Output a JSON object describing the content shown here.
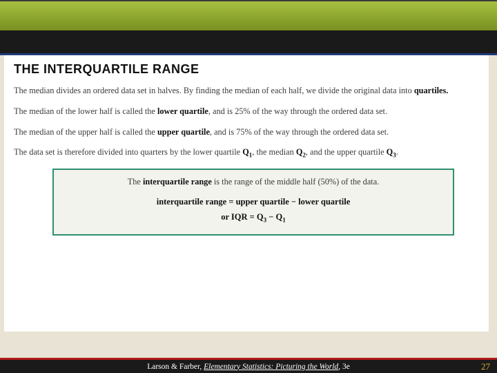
{
  "header": {
    "gradient_top": "#a8c040",
    "gradient_mid": "#8fa830",
    "gradient_bot": "#7a9020",
    "band_color": "#1a1a1a",
    "accent_line": "#1e3a7a"
  },
  "content": {
    "title": "THE INTERQUARTILE RANGE",
    "para1_a": "The median divides an ordered data set in halves. By finding the median of each half, we divide the original data into ",
    "para1_b": "quartiles.",
    "para2_a": "The median of the lower half is called the ",
    "para2_b": "lower quartile",
    "para2_c": ", and is 25% of the way through the ordered data set.",
    "para3_a": "The median of the upper half is called the ",
    "para3_b": "upper quartile",
    "para3_c": ", and is 75% of the way through the ordered data set.",
    "para4_a": "The data set is therefore divided into quarters by the lower quartile ",
    "para4_q1": "Q",
    "para4_s1": "1",
    "para4_b": ", the median ",
    "para4_q2": "Q",
    "para4_s2": "2",
    "para4_c": ", and the upper quartile ",
    "para4_q3": "Q",
    "para4_s3": "3",
    "para4_d": "."
  },
  "box": {
    "border_color": "#2e8f6f",
    "bg_color": "#f1f3ec",
    "line1_a": "The ",
    "line1_b": "interquartile range",
    "line1_c": " is the range of the middle half (50%) of the data.",
    "formula1": "interquartile range = upper quartile − lower quartile",
    "formula2_a": "or    IQR = Q",
    "formula2_s3": "3",
    "formula2_b": " − Q",
    "formula2_s1": "1"
  },
  "footer": {
    "bg_color": "#1a1a1a",
    "border_color": "#b01818",
    "authors": "Larson & Farber, ",
    "title_ital": "Elementary Statistics: Picturing the World",
    "edition": ", 3e",
    "page_number": "27",
    "page_color": "#e0b030"
  }
}
